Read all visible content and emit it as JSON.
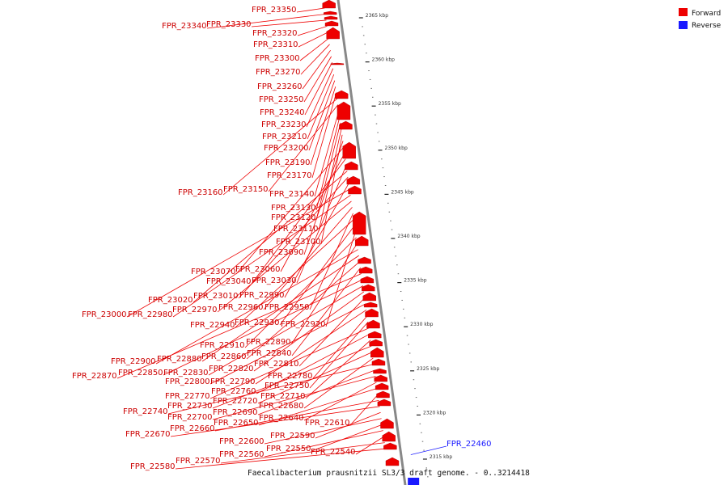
{
  "colors": {
    "forward": "#ee0000",
    "reverse": "#1a1aff",
    "backbone": "#888888"
  },
  "legend": [
    {
      "label": "Forward",
      "color": "#ee0000"
    },
    {
      "label": "Reverse",
      "color": "#1a1aff"
    }
  ],
  "caption": "Faecalibacterium prausnitzii SL3/3 draft genome. - 0..3214418",
  "ticks": [
    {
      "label": "2365 kbp",
      "kbp": 2365
    },
    {
      "label": "2360 kbp",
      "kbp": 2360
    },
    {
      "label": "2355 kbp",
      "kbp": 2355
    },
    {
      "label": "2350 kbp",
      "kbp": 2350
    },
    {
      "label": "2345 kbp",
      "kbp": 2345
    },
    {
      "label": "2340 kbp",
      "kbp": 2340
    },
    {
      "label": "2335 kbp",
      "kbp": 2335
    },
    {
      "label": "2330 kbp",
      "kbp": 2330
    },
    {
      "label": "2325 kbp",
      "kbp": 2325
    },
    {
      "label": "2320 kbp",
      "kbp": 2320
    },
    {
      "label": "2315 kbp",
      "kbp": 2315
    }
  ],
  "genes": [
    {
      "label": "FPR_23350",
      "strand": "forward"
    },
    {
      "label": "FPR_23340",
      "strand": "forward"
    },
    {
      "label": "FPR_23330",
      "strand": "forward"
    },
    {
      "label": "FPR_23320",
      "strand": "forward"
    },
    {
      "label": "FPR_23310",
      "strand": "forward"
    },
    {
      "label": "FPR_23300",
      "strand": "forward"
    },
    {
      "label": "FPR_23270",
      "strand": "forward"
    },
    {
      "label": "FPR_23260",
      "strand": "forward"
    },
    {
      "label": "FPR_23250",
      "strand": "forward"
    },
    {
      "label": "FPR_23240",
      "strand": "forward"
    },
    {
      "label": "FPR_23230",
      "strand": "forward"
    },
    {
      "label": "FPR_23210",
      "strand": "forward"
    },
    {
      "label": "FPR_23200",
      "strand": "forward"
    },
    {
      "label": "FPR_23190",
      "strand": "forward"
    },
    {
      "label": "FPR_23170",
      "strand": "forward"
    },
    {
      "label": "FPR_23160",
      "strand": "forward"
    },
    {
      "label": "FPR_23150",
      "strand": "forward"
    },
    {
      "label": "FPR_23140",
      "strand": "forward"
    },
    {
      "label": "FPR_23130",
      "strand": "forward"
    },
    {
      "label": "FPR_23120",
      "strand": "forward"
    },
    {
      "label": "FPR_23110",
      "strand": "forward"
    },
    {
      "label": "FPR_23100",
      "strand": "forward"
    },
    {
      "label": "FPR_23090",
      "strand": "forward"
    },
    {
      "label": "FPR_23070",
      "strand": "forward"
    },
    {
      "label": "FPR_23060",
      "strand": "forward"
    },
    {
      "label": "FPR_23040",
      "strand": "forward"
    },
    {
      "label": "FPR_23030",
      "strand": "forward"
    },
    {
      "label": "FPR_23020",
      "strand": "forward"
    },
    {
      "label": "FPR_23010",
      "strand": "forward"
    },
    {
      "label": "FPR_22990",
      "strand": "forward"
    },
    {
      "label": "FPR_23000",
      "strand": "forward"
    },
    {
      "label": "FPR_22980",
      "strand": "forward"
    },
    {
      "label": "FPR_22970",
      "strand": "forward"
    },
    {
      "label": "FPR_22960",
      "strand": "forward"
    },
    {
      "label": "FPR_22950",
      "strand": "forward"
    },
    {
      "label": "FPR_22940",
      "strand": "forward"
    },
    {
      "label": "FPR_22930",
      "strand": "forward"
    },
    {
      "label": "FPR_22920",
      "strand": "forward"
    },
    {
      "label": "FPR_22910",
      "strand": "forward"
    },
    {
      "label": "FPR_22890",
      "strand": "forward"
    },
    {
      "label": "FPR_22900",
      "strand": "forward"
    },
    {
      "label": "FPR_22880",
      "strand": "forward"
    },
    {
      "label": "FPR_22860",
      "strand": "forward"
    },
    {
      "label": "FPR_22840",
      "strand": "forward"
    },
    {
      "label": "FPR_22870",
      "strand": "forward"
    },
    {
      "label": "FPR_22850",
      "strand": "forward"
    },
    {
      "label": "FPR_22830",
      "strand": "forward"
    },
    {
      "label": "FPR_22820",
      "strand": "forward"
    },
    {
      "label": "FPR_22810",
      "strand": "forward"
    },
    {
      "label": "FPR_22800",
      "strand": "forward"
    },
    {
      "label": "FPR_22790",
      "strand": "forward"
    },
    {
      "label": "FPR_22780",
      "strand": "forward"
    },
    {
      "label": "FPR_22750",
      "strand": "forward"
    },
    {
      "label": "FPR_22770",
      "strand": "forward"
    },
    {
      "label": "FPR_22760",
      "strand": "forward"
    },
    {
      "label": "FPR_22710",
      "strand": "forward"
    },
    {
      "label": "FPR_22730",
      "strand": "forward"
    },
    {
      "label": "FPR_22720",
      "strand": "forward"
    },
    {
      "label": "FPR_22680",
      "strand": "forward"
    },
    {
      "label": "FPR_22740",
      "strand": "forward"
    },
    {
      "label": "FPR_22690",
      "strand": "forward"
    },
    {
      "label": "FPR_22700",
      "strand": "forward"
    },
    {
      "label": "FPR_22640",
      "strand": "forward"
    },
    {
      "label": "FPR_22650",
      "strand": "forward"
    },
    {
      "label": "FPR_22610",
      "strand": "forward"
    },
    {
      "label": "FPR_22660",
      "strand": "forward"
    },
    {
      "label": "FPR_22670",
      "strand": "forward"
    },
    {
      "label": "FPR_22590",
      "strand": "forward"
    },
    {
      "label": "FPR_22600",
      "strand": "forward"
    },
    {
      "label": "FPR_22550",
      "strand": "forward"
    },
    {
      "label": "FPR_22560",
      "strand": "forward"
    },
    {
      "label": "FPR_22540",
      "strand": "forward"
    },
    {
      "label": "FPR_22570",
      "strand": "forward"
    },
    {
      "label": "FPR_22580",
      "strand": "forward"
    },
    {
      "label": "FPR_22460",
      "strand": "reverse"
    }
  ]
}
